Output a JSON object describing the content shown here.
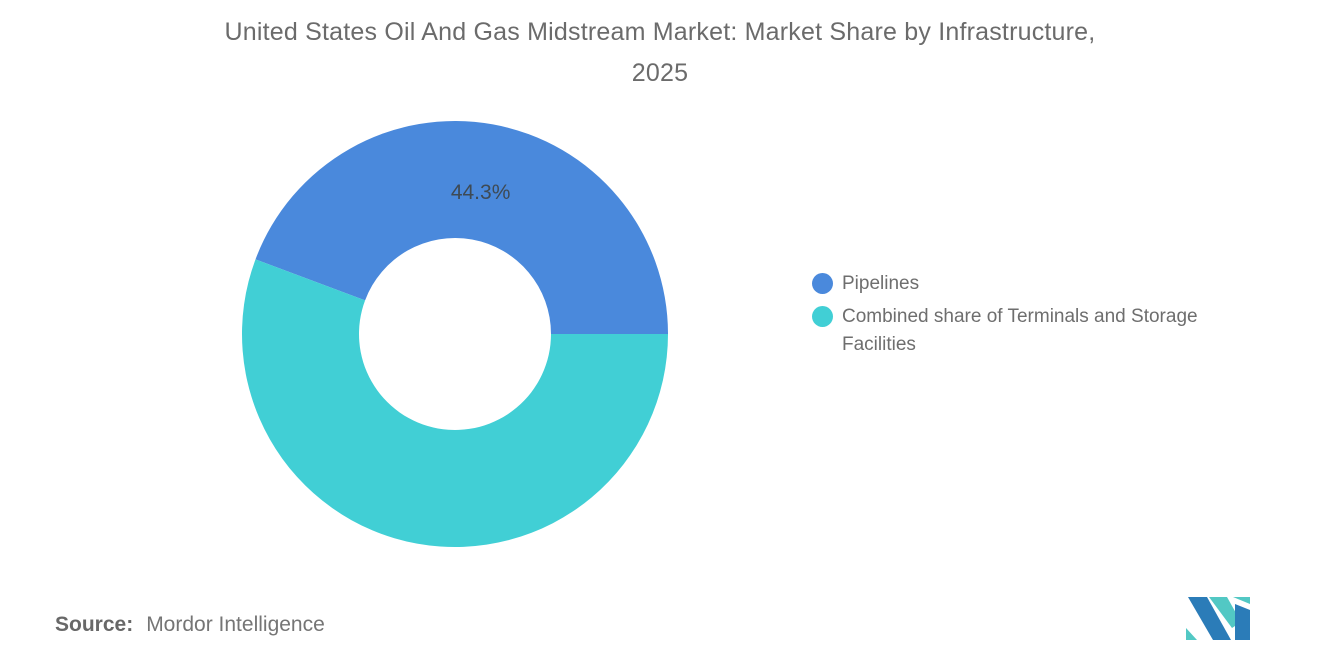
{
  "title": {
    "line1": "United States Oil And Gas Midstream Market: Market Share by Infrastructure,",
    "line2": "2025"
  },
  "chart_data": {
    "type": "pie",
    "subtype": "donut",
    "title": "United States Oil And Gas Midstream Market: Market Share by Infrastructure, 2025",
    "inner_radius_ratio": 0.45,
    "start_angle_deg": 0,
    "direction": "counterclockwise",
    "legend_position": "right",
    "series": [
      {
        "name": "Pipelines",
        "value": 44.3,
        "label": "44.3%",
        "color": "#4A89DC"
      },
      {
        "name": "Combined share of Terminals and Storage Facilities",
        "value": 55.7,
        "label": "",
        "color": "#41CFD5"
      }
    ],
    "slice_label_color": "#3E4A54"
  },
  "source": {
    "label": "Source:",
    "value": "Mordor Intelligence"
  },
  "logo": {
    "alt": "Mordor Intelligence logo",
    "colors": {
      "blue": "#2B7CB8",
      "teal": "#52C8C4"
    }
  }
}
